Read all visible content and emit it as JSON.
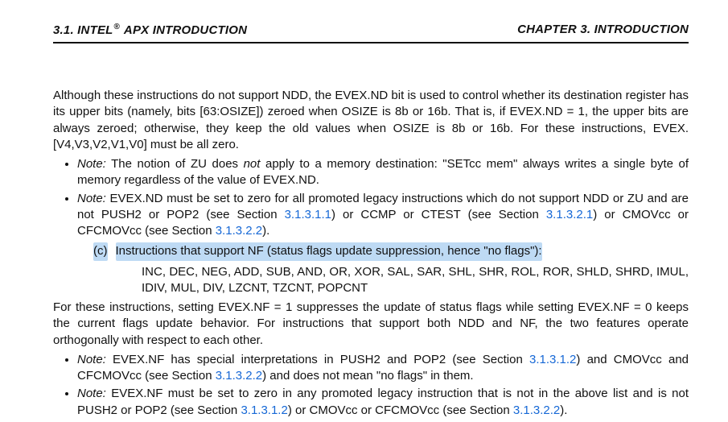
{
  "header": {
    "left_prefix": "3.1.   INTEL",
    "left_reg": "®",
    "left_suffix": " APX INTRODUCTION",
    "right": "CHAPTER 3.   INTRODUCTION"
  },
  "para1": "Although these instructions do not support NDD, the EVEX.ND bit is used to control whether its destination register has its upper bits (namely, bits [63:OSIZE]) zeroed when OSIZE is 8b or 16b. That is, if EVEX.ND = 1, the upper bits are always zeroed; otherwise, they keep the old values when OSIZE is 8b or 16b. For these instructions, EVEX.[V4,V3,V2,V1,V0] must be all zero.",
  "note1": {
    "label": "Note:",
    "pre": " The notion of ZU does ",
    "em": "not",
    "post": " apply to a memory destination:  \"SETcc mem\" always writes a single byte of memory regardless of the value of EVEX.ND."
  },
  "note2": {
    "label": "Note:",
    "t1": " EVEX.ND must be set to zero for all promoted legacy instructions which do not support NDD or ZU and are not PUSH2 or POP2 (see Section ",
    "l1": "3.1.3.1.1",
    "t2": ") or CCMP or CTEST (see Section ",
    "l2": "3.1.3.2.1",
    "t3": ") or CMOVcc or CFCMOVcc (see Section ",
    "l3": "3.1.3.2.2",
    "t4": ")."
  },
  "item_c": {
    "marker": "(c)",
    "text": "Instructions that support NF (status flags update suppression, hence \"no flags\"):"
  },
  "instr_list": "INC, DEC, NEG, ADD, SUB, AND, OR, XOR, SAL, SAR, SHL, SHR, ROL, ROR, SHLD, SHRD, IMUL, IDIV, MUL, DIV, LZCNT, TZCNT, POPCNT",
  "para2": "For these instructions, setting EVEX.NF = 1 suppresses the update of status flags while setting EVEX.NF = 0 keeps the current flags update behavior. For instructions that support both NDD and NF, the two features operate orthogonally with respect to each other.",
  "note3": {
    "label": "Note:",
    "t1": " EVEX.NF has special interpretations in PUSH2 and POP2 (see Section ",
    "l1": "3.1.3.1.2",
    "t2": ") and CMOVcc and CFCMOVcc (see Section ",
    "l2": "3.1.3.2.2",
    "t3": ") and does not mean \"no flags\" in them."
  },
  "note4": {
    "label": "Note:",
    "t1": " EVEX.NF must be set to zero in any promoted legacy instruction that is not in the above list and is not PUSH2 or POP2 (see Section ",
    "l1": "3.1.3.1.2",
    "t2": ") or CMOVcc or CFCMOVcc (see Section ",
    "l2": "3.1.3.2.2",
    "t3": ")."
  }
}
